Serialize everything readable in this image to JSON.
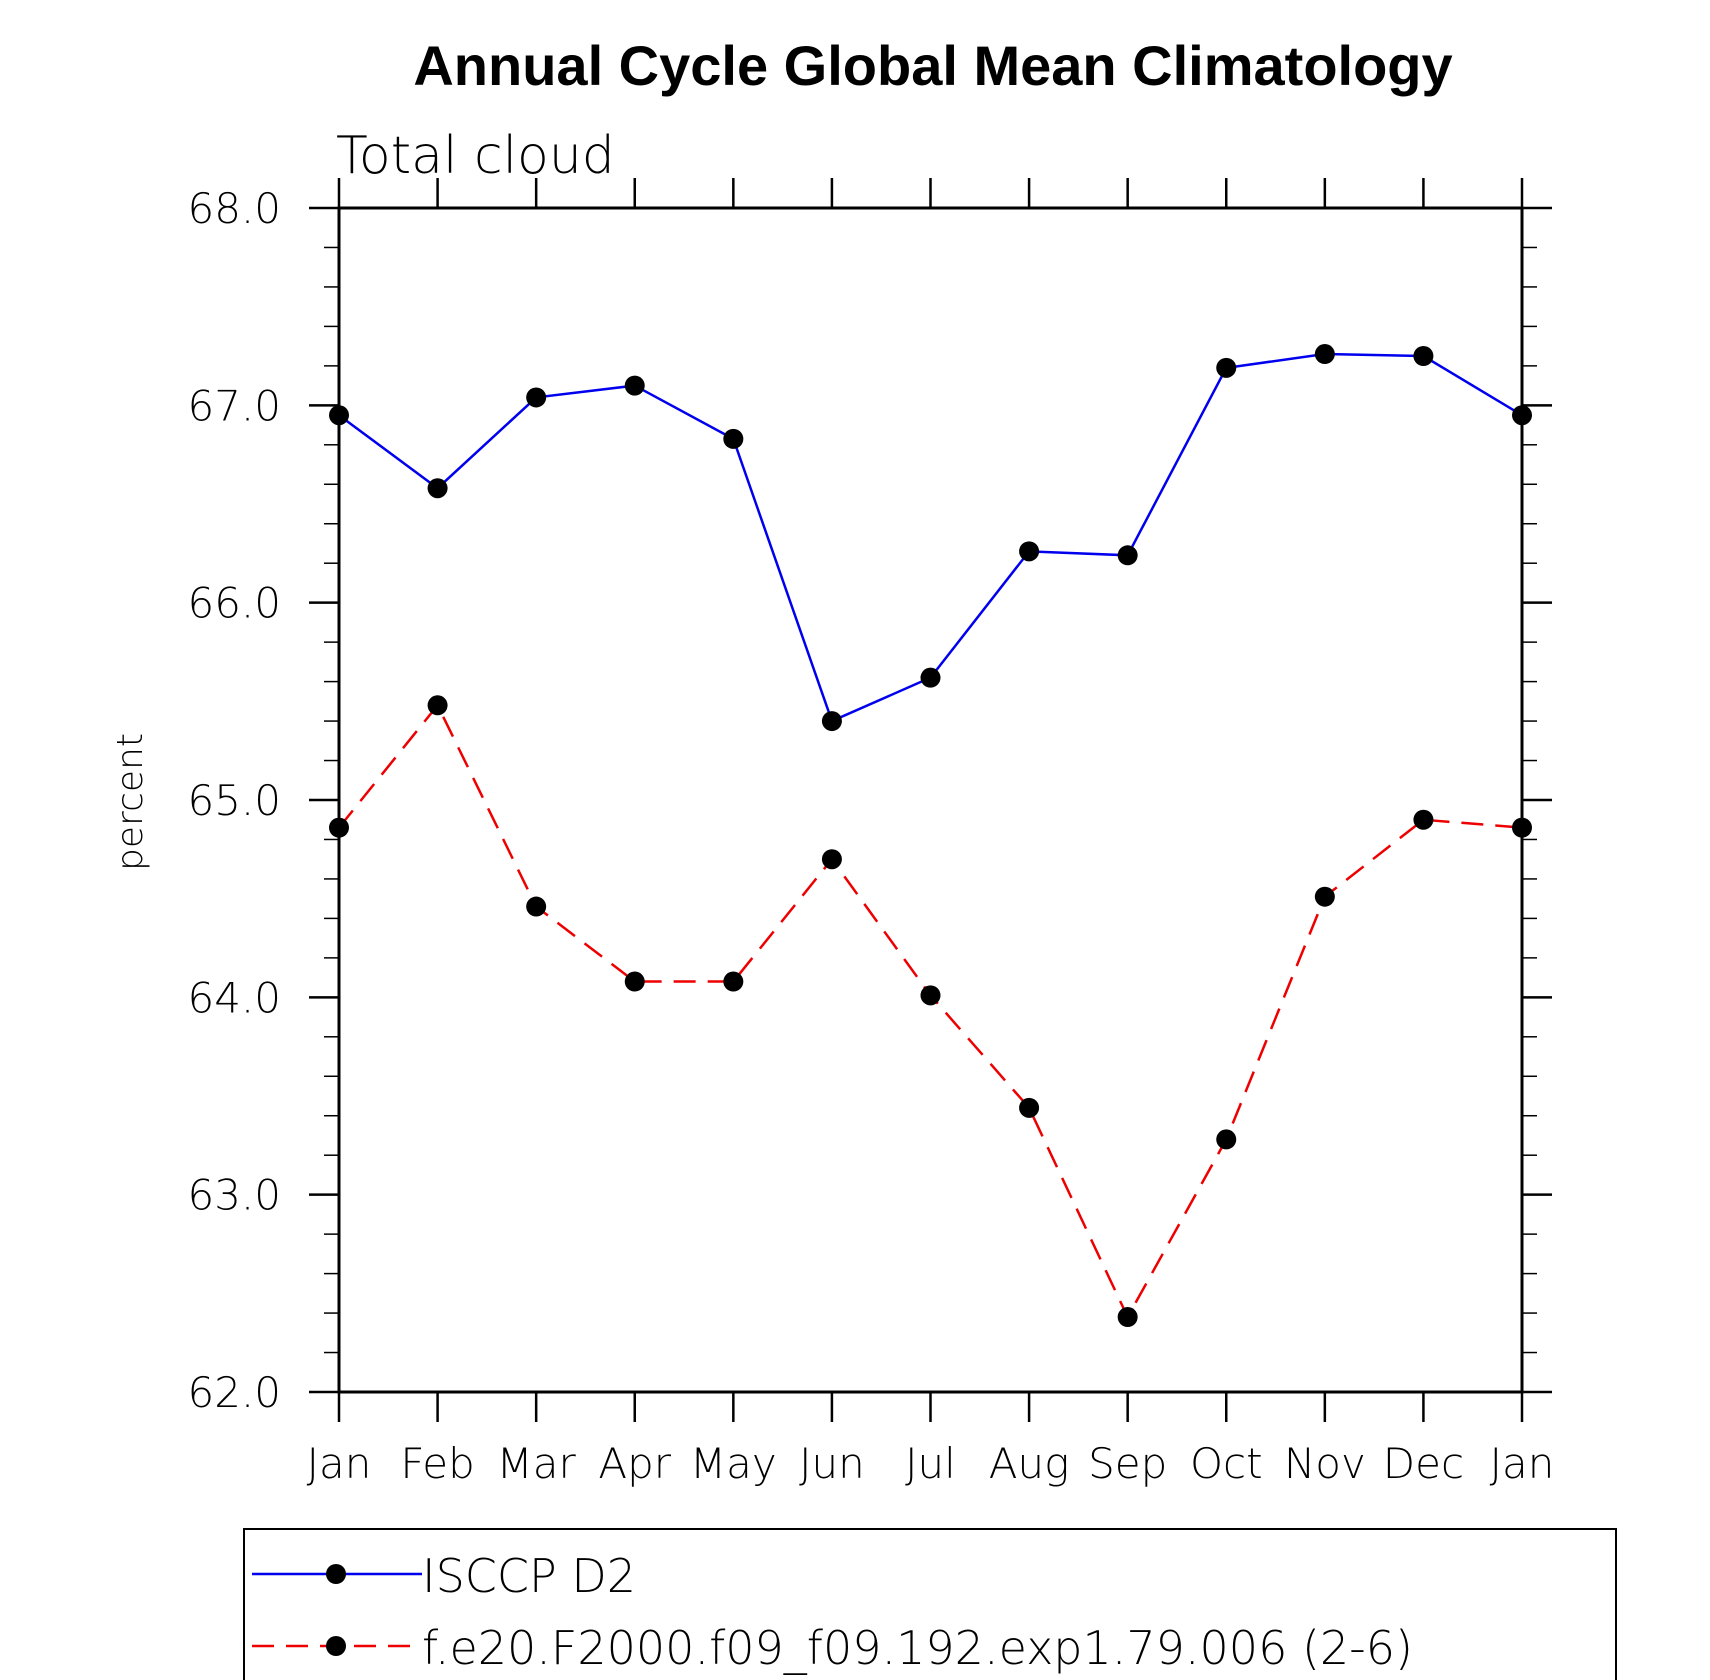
{
  "chart_data": {
    "type": "line",
    "title": "Annual Cycle Global Mean Climatology",
    "subtitle": "Total cloud",
    "xlabel": "",
    "ylabel": "percent",
    "ylim": [
      62.0,
      68.0
    ],
    "yticks": [
      "62.0",
      "63.0",
      "64.0",
      "65.0",
      "66.0",
      "67.0",
      "68.0"
    ],
    "categories": [
      "Jan",
      "Feb",
      "Mar",
      "Apr",
      "May",
      "Jun",
      "Jul",
      "Aug",
      "Sep",
      "Oct",
      "Nov",
      "Dec",
      "Jan"
    ],
    "grid": false,
    "legend_position": "bottom",
    "series": [
      {
        "name": "ISCCP D2",
        "color": "#0000ee",
        "dash": "solid",
        "marker": "filled-circle",
        "values": [
          66.95,
          66.58,
          67.04,
          67.1,
          66.83,
          65.4,
          65.62,
          66.26,
          66.24,
          67.19,
          67.26,
          67.25,
          66.95
        ]
      },
      {
        "name": "f.e20.F2000.f09_f09.192.exp1.79.006 (2-6)",
        "color": "#ee0000",
        "dash": "dashed",
        "marker": "filled-circle",
        "values": [
          64.86,
          65.48,
          64.46,
          64.08,
          64.08,
          64.7,
          64.01,
          63.44,
          62.38,
          63.28,
          64.51,
          64.9,
          64.86
        ]
      }
    ]
  }
}
